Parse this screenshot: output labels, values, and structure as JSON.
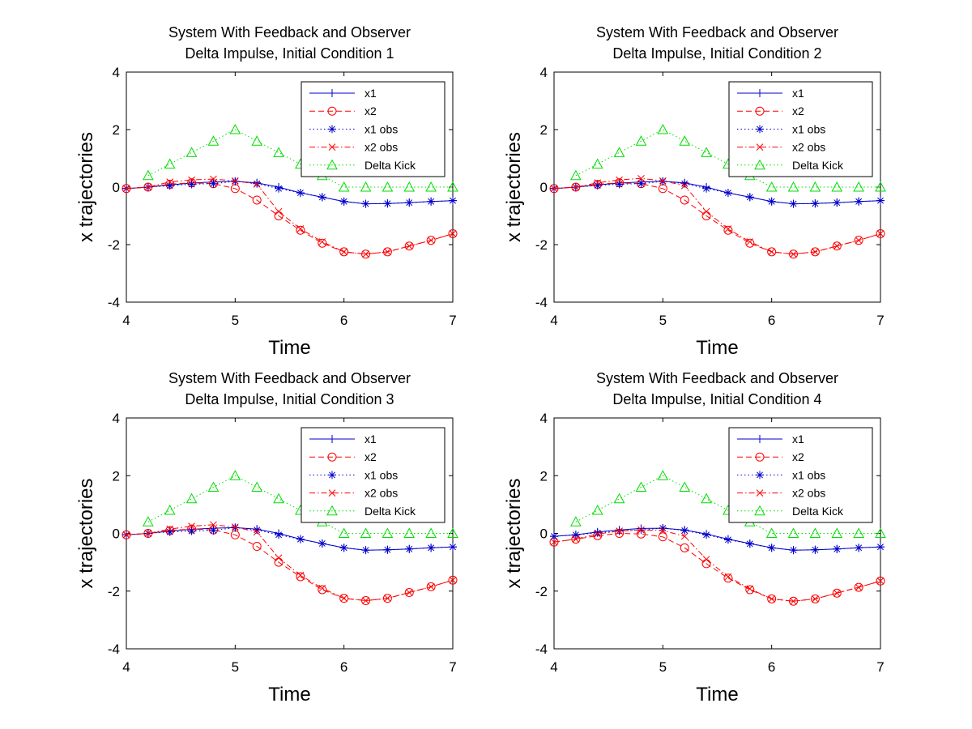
{
  "chart_data": [
    {
      "type": "line",
      "title": "System With Feedback and Observer",
      "subtitle": "Delta Impulse, Initial Condition 1",
      "xlabel": "Time",
      "ylabel": "x trajectories",
      "xlim": [
        4,
        7
      ],
      "ylim": [
        -4,
        4
      ],
      "xticks": [
        "4",
        "5",
        "6",
        "7"
      ],
      "yticks": [
        "-4",
        "-2",
        "0",
        "2",
        "4"
      ],
      "grid": false,
      "legend_position": "top-right",
      "series": [
        {
          "name": "x1",
          "color": "#0000cc",
          "dash": "solid",
          "marker": "plus",
          "x": [
            4.0,
            4.2,
            4.4,
            4.6,
            4.8,
            5.0,
            5.2,
            5.4,
            5.6,
            5.8,
            6.0,
            6.2,
            6.4,
            6.6,
            6.8,
            7.0
          ],
          "values": [
            -0.05,
            0.0,
            0.08,
            0.14,
            0.18,
            0.2,
            0.15,
            0.0,
            -0.2,
            -0.35,
            -0.5,
            -0.58,
            -0.57,
            -0.54,
            -0.5,
            -0.47
          ]
        },
        {
          "name": "x2",
          "color": "#ff0000",
          "dash": "dashed",
          "marker": "circle",
          "x": [
            4.0,
            4.2,
            4.4,
            4.6,
            4.8,
            5.0,
            5.2,
            5.4,
            5.6,
            5.8,
            6.0,
            6.2,
            6.4,
            6.6,
            6.8,
            7.0
          ],
          "values": [
            -0.05,
            0.0,
            0.1,
            0.15,
            0.12,
            -0.05,
            -0.45,
            -1.0,
            -1.5,
            -1.95,
            -2.25,
            -2.33,
            -2.25,
            -2.05,
            -1.85,
            -1.62
          ]
        },
        {
          "name": "x1 obs",
          "color": "#0000cc",
          "dash": "dotted",
          "marker": "star",
          "x": [
            4.0,
            4.2,
            4.4,
            4.6,
            4.8,
            5.0,
            5.2,
            5.4,
            5.6,
            5.8,
            6.0,
            6.2,
            6.4,
            6.6,
            6.8,
            7.0
          ],
          "values": [
            -0.05,
            0.0,
            0.05,
            0.1,
            0.12,
            0.2,
            0.12,
            -0.05,
            -0.2,
            -0.35,
            -0.5,
            -0.58,
            -0.57,
            -0.54,
            -0.5,
            -0.47
          ]
        },
        {
          "name": "x2 obs",
          "color": "#ff0000",
          "dash": "dashdot",
          "marker": "cross",
          "x": [
            4.0,
            4.2,
            4.4,
            4.6,
            4.8,
            5.0,
            5.2,
            5.4,
            5.6,
            5.8,
            6.0,
            6.2,
            6.4,
            6.6,
            6.8,
            7.0
          ],
          "values": [
            -0.05,
            0.0,
            0.18,
            0.25,
            0.28,
            0.22,
            0.1,
            -0.85,
            -1.45,
            -1.9,
            -2.25,
            -2.33,
            -2.25,
            -2.05,
            -1.85,
            -1.62
          ]
        },
        {
          "name": "Delta Kick",
          "color": "#00dd00",
          "dash": "dotted",
          "marker": "triangle",
          "x": [
            4.2,
            4.4,
            4.6,
            4.8,
            5.0,
            5.2,
            5.4,
            5.6,
            5.8,
            6.0,
            6.2,
            6.4,
            6.6,
            6.8,
            7.0
          ],
          "values": [
            0.4,
            0.8,
            1.2,
            1.6,
            2.0,
            1.6,
            1.2,
            0.8,
            0.4,
            0,
            0,
            0,
            0,
            0,
            0
          ]
        }
      ]
    },
    {
      "type": "line",
      "title": "System With Feedback and Observer",
      "subtitle": "Delta Impulse, Initial Condition 2",
      "xlabel": "Time",
      "ylabel": "x trajectories",
      "xlim": [
        4,
        7
      ],
      "ylim": [
        -4,
        4
      ],
      "xticks": [
        "4",
        "5",
        "6",
        "7"
      ],
      "yticks": [
        "-4",
        "-2",
        "0",
        "2",
        "4"
      ],
      "grid": false,
      "legend_position": "top-right",
      "series": [
        {
          "name": "x1",
          "color": "#0000cc",
          "dash": "solid",
          "marker": "plus",
          "x": [
            4.0,
            4.2,
            4.4,
            4.6,
            4.8,
            5.0,
            5.2,
            5.4,
            5.6,
            5.8,
            6.0,
            6.2,
            6.4,
            6.6,
            6.8,
            7.0
          ],
          "values": [
            -0.05,
            0.0,
            0.08,
            0.14,
            0.18,
            0.2,
            0.15,
            0.0,
            -0.2,
            -0.35,
            -0.5,
            -0.58,
            -0.57,
            -0.54,
            -0.5,
            -0.47
          ]
        },
        {
          "name": "x2",
          "color": "#ff0000",
          "dash": "dashed",
          "marker": "circle",
          "x": [
            4.0,
            4.2,
            4.4,
            4.6,
            4.8,
            5.0,
            5.2,
            5.4,
            5.6,
            5.8,
            6.0,
            6.2,
            6.4,
            6.6,
            6.8,
            7.0
          ],
          "values": [
            -0.05,
            0.0,
            0.1,
            0.15,
            0.12,
            -0.05,
            -0.45,
            -1.0,
            -1.5,
            -1.95,
            -2.25,
            -2.33,
            -2.25,
            -2.05,
            -1.85,
            -1.62
          ]
        },
        {
          "name": "x1 obs",
          "color": "#0000cc",
          "dash": "dotted",
          "marker": "star",
          "x": [
            4.0,
            4.2,
            4.4,
            4.6,
            4.8,
            5.0,
            5.2,
            5.4,
            5.6,
            5.8,
            6.0,
            6.2,
            6.4,
            6.6,
            6.8,
            7.0
          ],
          "values": [
            -0.05,
            0.0,
            0.06,
            0.1,
            0.12,
            0.2,
            0.12,
            -0.05,
            -0.2,
            -0.35,
            -0.5,
            -0.58,
            -0.57,
            -0.54,
            -0.5,
            -0.47
          ]
        },
        {
          "name": "x2 obs",
          "color": "#ff0000",
          "dash": "dashdot",
          "marker": "cross",
          "x": [
            4.0,
            4.2,
            4.4,
            4.6,
            4.8,
            5.0,
            5.2,
            5.4,
            5.6,
            5.8,
            6.0,
            6.2,
            6.4,
            6.6,
            6.8,
            7.0
          ],
          "values": [
            -0.05,
            0.0,
            0.15,
            0.25,
            0.3,
            0.22,
            0.05,
            -0.85,
            -1.45,
            -1.9,
            -2.25,
            -2.33,
            -2.25,
            -2.05,
            -1.85,
            -1.62
          ]
        },
        {
          "name": "Delta Kick",
          "color": "#00dd00",
          "dash": "dotted",
          "marker": "triangle",
          "x": [
            4.2,
            4.4,
            4.6,
            4.8,
            5.0,
            5.2,
            5.4,
            5.6,
            5.8,
            6.0,
            6.2,
            6.4,
            6.6,
            6.8,
            7.0
          ],
          "values": [
            0.4,
            0.8,
            1.2,
            1.6,
            2.0,
            1.6,
            1.2,
            0.8,
            0.4,
            0,
            0,
            0,
            0,
            0,
            0
          ]
        }
      ]
    },
    {
      "type": "line",
      "title": "System With Feedback and Observer",
      "subtitle": "Delta Impulse, Initial Condition 3",
      "xlabel": "Time",
      "ylabel": "x trajectories",
      "xlim": [
        4,
        7
      ],
      "ylim": [
        -4,
        4
      ],
      "xticks": [
        "4",
        "5",
        "6",
        "7"
      ],
      "yticks": [
        "-4",
        "-2",
        "0",
        "2",
        "4"
      ],
      "grid": false,
      "legend_position": "top-right",
      "series": [
        {
          "name": "x1",
          "color": "#0000cc",
          "dash": "solid",
          "marker": "plus",
          "x": [
            4.0,
            4.2,
            4.4,
            4.6,
            4.8,
            5.0,
            5.2,
            5.4,
            5.6,
            5.8,
            6.0,
            6.2,
            6.4,
            6.6,
            6.8,
            7.0
          ],
          "values": [
            -0.05,
            0.0,
            0.08,
            0.14,
            0.18,
            0.2,
            0.15,
            0.0,
            -0.2,
            -0.35,
            -0.5,
            -0.58,
            -0.57,
            -0.54,
            -0.5,
            -0.47
          ]
        },
        {
          "name": "x2",
          "color": "#ff0000",
          "dash": "dashed",
          "marker": "circle",
          "x": [
            4.0,
            4.2,
            4.4,
            4.6,
            4.8,
            5.0,
            5.2,
            5.4,
            5.6,
            5.8,
            6.0,
            6.2,
            6.4,
            6.6,
            6.8,
            7.0
          ],
          "values": [
            -0.05,
            0.0,
            0.1,
            0.15,
            0.12,
            -0.05,
            -0.45,
            -1.0,
            -1.5,
            -1.95,
            -2.25,
            -2.33,
            -2.25,
            -2.05,
            -1.85,
            -1.62
          ]
        },
        {
          "name": "x1 obs",
          "color": "#0000cc",
          "dash": "dotted",
          "marker": "star",
          "x": [
            4.0,
            4.2,
            4.4,
            4.6,
            4.8,
            5.0,
            5.2,
            5.4,
            5.6,
            5.8,
            6.0,
            6.2,
            6.4,
            6.6,
            6.8,
            7.0
          ],
          "values": [
            -0.05,
            0.0,
            0.05,
            0.08,
            0.1,
            0.2,
            0.12,
            -0.05,
            -0.2,
            -0.35,
            -0.5,
            -0.58,
            -0.57,
            -0.54,
            -0.5,
            -0.47
          ]
        },
        {
          "name": "x2 obs",
          "color": "#ff0000",
          "dash": "dashdot",
          "marker": "cross",
          "x": [
            4.0,
            4.2,
            4.4,
            4.6,
            4.8,
            5.0,
            5.2,
            5.4,
            5.6,
            5.8,
            6.0,
            6.2,
            6.4,
            6.6,
            6.8,
            7.0
          ],
          "values": [
            -0.05,
            0.0,
            0.15,
            0.25,
            0.3,
            0.22,
            0.05,
            -0.85,
            -1.45,
            -1.9,
            -2.25,
            -2.33,
            -2.25,
            -2.05,
            -1.85,
            -1.62
          ]
        },
        {
          "name": "Delta Kick",
          "color": "#00dd00",
          "dash": "dotted",
          "marker": "triangle",
          "x": [
            4.2,
            4.4,
            4.6,
            4.8,
            5.0,
            5.2,
            5.4,
            5.6,
            5.8,
            6.0,
            6.2,
            6.4,
            6.6,
            6.8,
            7.0
          ],
          "values": [
            0.4,
            0.8,
            1.2,
            1.6,
            2.0,
            1.6,
            1.2,
            0.8,
            0.4,
            0,
            0,
            0,
            0,
            0,
            0
          ]
        }
      ]
    },
    {
      "type": "line",
      "title": "System With Feedback and Observer",
      "subtitle": "Delta Impulse, Initial Condition 4",
      "xlabel": "Time",
      "ylabel": "x trajectories",
      "xlim": [
        4,
        7
      ],
      "ylim": [
        -4,
        4
      ],
      "xticks": [
        "4",
        "5",
        "6",
        "7"
      ],
      "yticks": [
        "-4",
        "-2",
        "0",
        "2",
        "4"
      ],
      "grid": false,
      "legend_position": "top-right",
      "series": [
        {
          "name": "x1",
          "color": "#0000cc",
          "dash": "solid",
          "marker": "plus",
          "x": [
            4.0,
            4.2,
            4.4,
            4.6,
            4.8,
            5.0,
            5.2,
            5.4,
            5.6,
            5.8,
            6.0,
            6.2,
            6.4,
            6.6,
            6.8,
            7.0
          ],
          "values": [
            -0.1,
            -0.05,
            0.05,
            0.12,
            0.17,
            0.18,
            0.12,
            -0.02,
            -0.2,
            -0.35,
            -0.5,
            -0.58,
            -0.57,
            -0.54,
            -0.5,
            -0.47
          ]
        },
        {
          "name": "x2",
          "color": "#ff0000",
          "dash": "dashed",
          "marker": "circle",
          "x": [
            4.0,
            4.2,
            4.4,
            4.6,
            4.8,
            5.0,
            5.2,
            5.4,
            5.6,
            5.8,
            6.0,
            6.2,
            6.4,
            6.6,
            6.8,
            7.0
          ],
          "values": [
            -0.3,
            -0.2,
            -0.08,
            0.0,
            -0.02,
            -0.12,
            -0.5,
            -1.05,
            -1.55,
            -1.95,
            -2.27,
            -2.35,
            -2.27,
            -2.07,
            -1.87,
            -1.65
          ]
        },
        {
          "name": "x1 obs",
          "color": "#0000cc",
          "dash": "dotted",
          "marker": "star",
          "x": [
            4.0,
            4.2,
            4.4,
            4.6,
            4.8,
            5.0,
            5.2,
            5.4,
            5.6,
            5.8,
            6.0,
            6.2,
            6.4,
            6.6,
            6.8,
            7.0
          ],
          "values": [
            -0.1,
            -0.05,
            0.02,
            0.08,
            0.12,
            0.18,
            0.1,
            -0.05,
            -0.22,
            -0.36,
            -0.5,
            -0.58,
            -0.57,
            -0.54,
            -0.5,
            -0.47
          ]
        },
        {
          "name": "x2 obs",
          "color": "#ff0000",
          "dash": "dashdot",
          "marker": "cross",
          "x": [
            4.0,
            4.2,
            4.4,
            4.6,
            4.8,
            5.0,
            5.2,
            5.4,
            5.6,
            5.8,
            6.0,
            6.2,
            6.4,
            6.6,
            6.8,
            7.0
          ],
          "values": [
            -0.3,
            -0.2,
            -0.02,
            0.08,
            0.12,
            0.1,
            -0.1,
            -0.9,
            -1.5,
            -1.92,
            -2.27,
            -2.35,
            -2.27,
            -2.07,
            -1.87,
            -1.65
          ]
        },
        {
          "name": "Delta Kick",
          "color": "#00dd00",
          "dash": "dotted",
          "marker": "triangle",
          "x": [
            4.2,
            4.4,
            4.6,
            4.8,
            5.0,
            5.2,
            5.4,
            5.6,
            5.8,
            6.0,
            6.2,
            6.4,
            6.6,
            6.8,
            7.0
          ],
          "values": [
            0.4,
            0.8,
            1.2,
            1.6,
            2.0,
            1.6,
            1.2,
            0.8,
            0.4,
            0,
            0,
            0,
            0,
            0,
            0
          ]
        }
      ]
    }
  ]
}
